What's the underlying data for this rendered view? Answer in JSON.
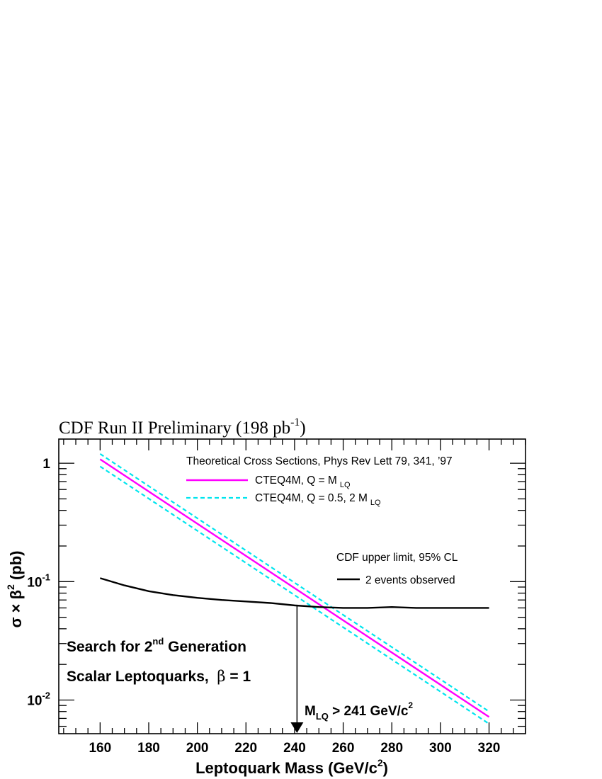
{
  "chart_data": {
    "type": "line",
    "title": "CDF Run II Preliminary (198 pb",
    "title_sup": "-1",
    "title_end": ")",
    "xlabel": "Leptoquark Mass (GeV/c",
    "xlabel_sup": "2",
    "xlabel_end": ")",
    "ylabel_pre": "σ × β",
    "ylabel_sup": "2",
    "ylabel_end": " (pb)",
    "xlim": [
      143,
      335
    ],
    "ylim": [
      0.0052,
      1.6
    ],
    "yscale": "log",
    "x_ticks": [
      160,
      180,
      200,
      220,
      240,
      260,
      280,
      300,
      320
    ],
    "y_ticks": [
      {
        "value": 1,
        "base": "1",
        "exp": ""
      },
      {
        "value": 0.1,
        "base": "10",
        "exp": "-1"
      },
      {
        "value": 0.01,
        "base": "10",
        "exp": "-2"
      }
    ],
    "series": [
      {
        "name": "CTEQ4M, Q = M",
        "name_sub": "LQ",
        "color": "#ff00ff",
        "dash": "solid",
        "x": [
          160,
          320
        ],
        "y": [
          1.08,
          0.0072
        ]
      },
      {
        "name": "CTEQ4M, Q = 0.5, 2 M",
        "name_sub": "LQ",
        "color": "#00e5ee",
        "dash": "dashed",
        "x": [
          160,
          320
        ],
        "y": [
          1.2,
          0.008
        ]
      },
      {
        "name": "",
        "color": "#00e5ee",
        "dash": "dashed",
        "x": [
          160,
          320
        ],
        "y": [
          0.94,
          0.0063
        ]
      },
      {
        "name": "2 events observed",
        "color": "#000000",
        "dash": "solid",
        "x": [
          160,
          170,
          180,
          190,
          200,
          210,
          220,
          230,
          240,
          250,
          260,
          270,
          280,
          290,
          300,
          310,
          320
        ],
        "y": [
          0.107,
          0.093,
          0.083,
          0.077,
          0.073,
          0.07,
          0.068,
          0.066,
          0.063,
          0.061,
          0.06,
          0.06,
          0.061,
          0.06,
          0.06,
          0.06,
          0.06
        ]
      }
    ],
    "legend": {
      "theory_header": "Theoretical Cross Sections, Phys Rev Lett 79, 341, ’97",
      "limit_header": "CDF upper limit, 95% CL",
      "placement": "top-right"
    },
    "annotations": {
      "search_line1_pre": "Search for 2",
      "search_line1_sup": "nd",
      "search_line1_end": " Generation",
      "search_line2_pre": "Scalar Leptoquarks,  ",
      "search_line2_beta": "β",
      "search_line2_end": " = 1",
      "limit_label_pre": "M",
      "limit_label_sub": "LQ",
      "limit_label_mid": " > 241 GeV/c",
      "limit_label_sup": "2",
      "limit_x": 241,
      "limit_y": 0.062
    }
  }
}
